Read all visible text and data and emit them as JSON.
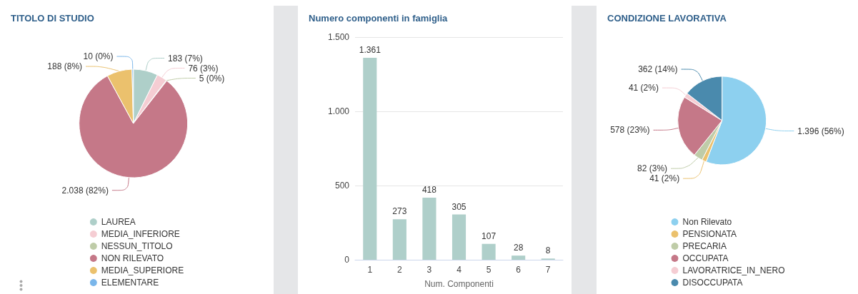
{
  "chart_data": [
    {
      "type": "pie",
      "title": "TITOLO DI STUDIO",
      "categories": [
        "LAUREA",
        "MEDIA_INFERIORE",
        "NESSUN_TITOLO",
        "NON RILEVATO",
        "MEDIA_SUPERIORE",
        "ELEMENTARE"
      ],
      "values": [
        183,
        76,
        5,
        2038,
        188,
        10
      ],
      "value_labels": [
        "183 (7%)",
        "76 (3%)",
        "5 (0%)",
        "2.038 (82%)",
        "188 (8%)",
        "10 (0%)"
      ],
      "colors": [
        "#aecfc9",
        "#f5cdd3",
        "#bfcca8",
        "#c57888",
        "#ebc16d",
        "#7ab6ea"
      ],
      "legend": "bottom"
    },
    {
      "type": "bar",
      "title": "Numero componenti in famiglia",
      "xlabel": "Num. Componenti",
      "categories": [
        "1",
        "2",
        "3",
        "4",
        "5",
        "6",
        "7"
      ],
      "values": [
        1361,
        273,
        418,
        305,
        107,
        28,
        8
      ],
      "value_labels": [
        "1.361",
        "273",
        "418",
        "305",
        "107",
        "28",
        "8"
      ],
      "color": "#afcfca",
      "ylim": [
        0,
        1500
      ],
      "yticks": [
        0,
        500,
        {
          "value": 1000,
          "label": "1.000"
        },
        {
          "value": 1500,
          "label": "1.500"
        }
      ],
      "grid": "y"
    },
    {
      "type": "pie",
      "title": "CONDIZIONE LAVORATIVA",
      "categories": [
        "Non Rilevato",
        "PENSIONATA",
        "PRECARIA",
        "OCCUPATA",
        "LAVORATRICE_IN_NERO",
        "DISOCCUPATA"
      ],
      "values": [
        1396,
        41,
        82,
        578,
        41,
        362
      ],
      "value_labels": [
        "1.396 (56%)",
        "41 (2%)",
        "82 (3%)",
        "578 (23%)",
        "41 (2%)",
        "362 (14%)"
      ],
      "colors": [
        "#8dd0ef",
        "#ebc16d",
        "#bfcca8",
        "#c57888",
        "#f5cdd3",
        "#4a8aad"
      ],
      "legend": "bottom"
    }
  ]
}
